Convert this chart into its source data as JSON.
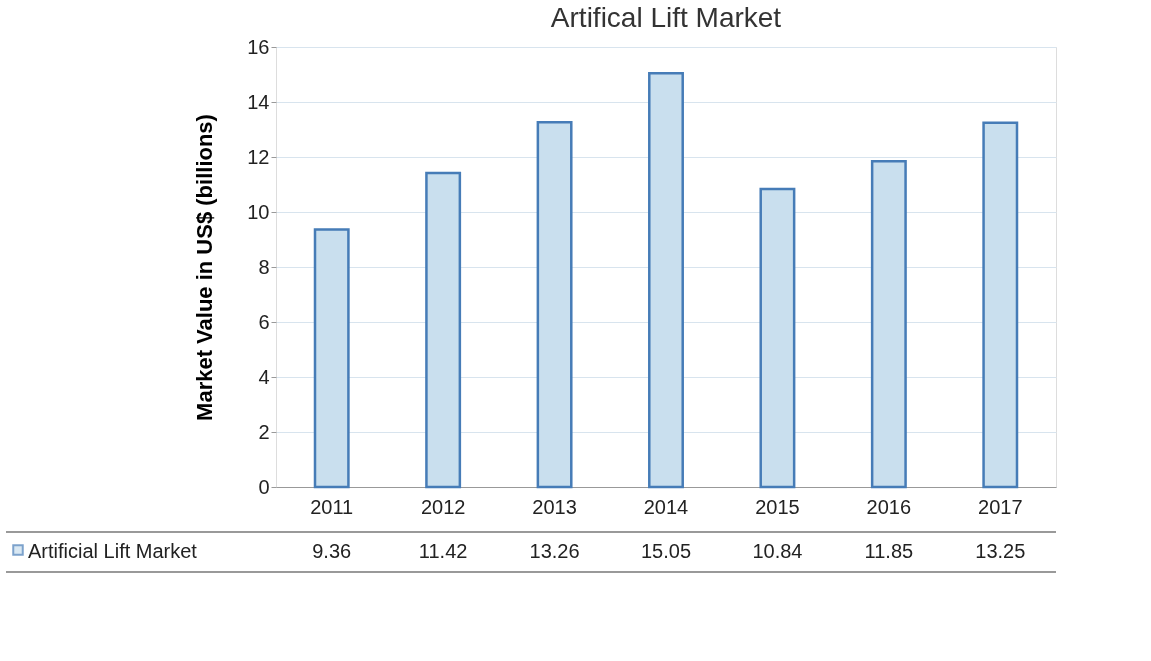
{
  "chart_data": {
    "type": "bar",
    "title": "Artifical Lift Market",
    "ylabel": "Market Value in US$ (billions)",
    "categories": [
      "2011",
      "2012",
      "2013",
      "2014",
      "2015",
      "2016",
      "2017"
    ],
    "series": [
      {
        "name": "Artificial Lift Market",
        "color": "#c9dfee",
        "values": [
          9.36,
          11.42,
          13.26,
          15.05,
          10.84,
          11.85,
          13.25
        ]
      }
    ],
    "ylim": [
      0,
      16
    ],
    "yticks": [
      0,
      2,
      4,
      6,
      8,
      10,
      12,
      14,
      16
    ],
    "grid": "y",
    "data_labels": true,
    "legend": "bottom left"
  }
}
